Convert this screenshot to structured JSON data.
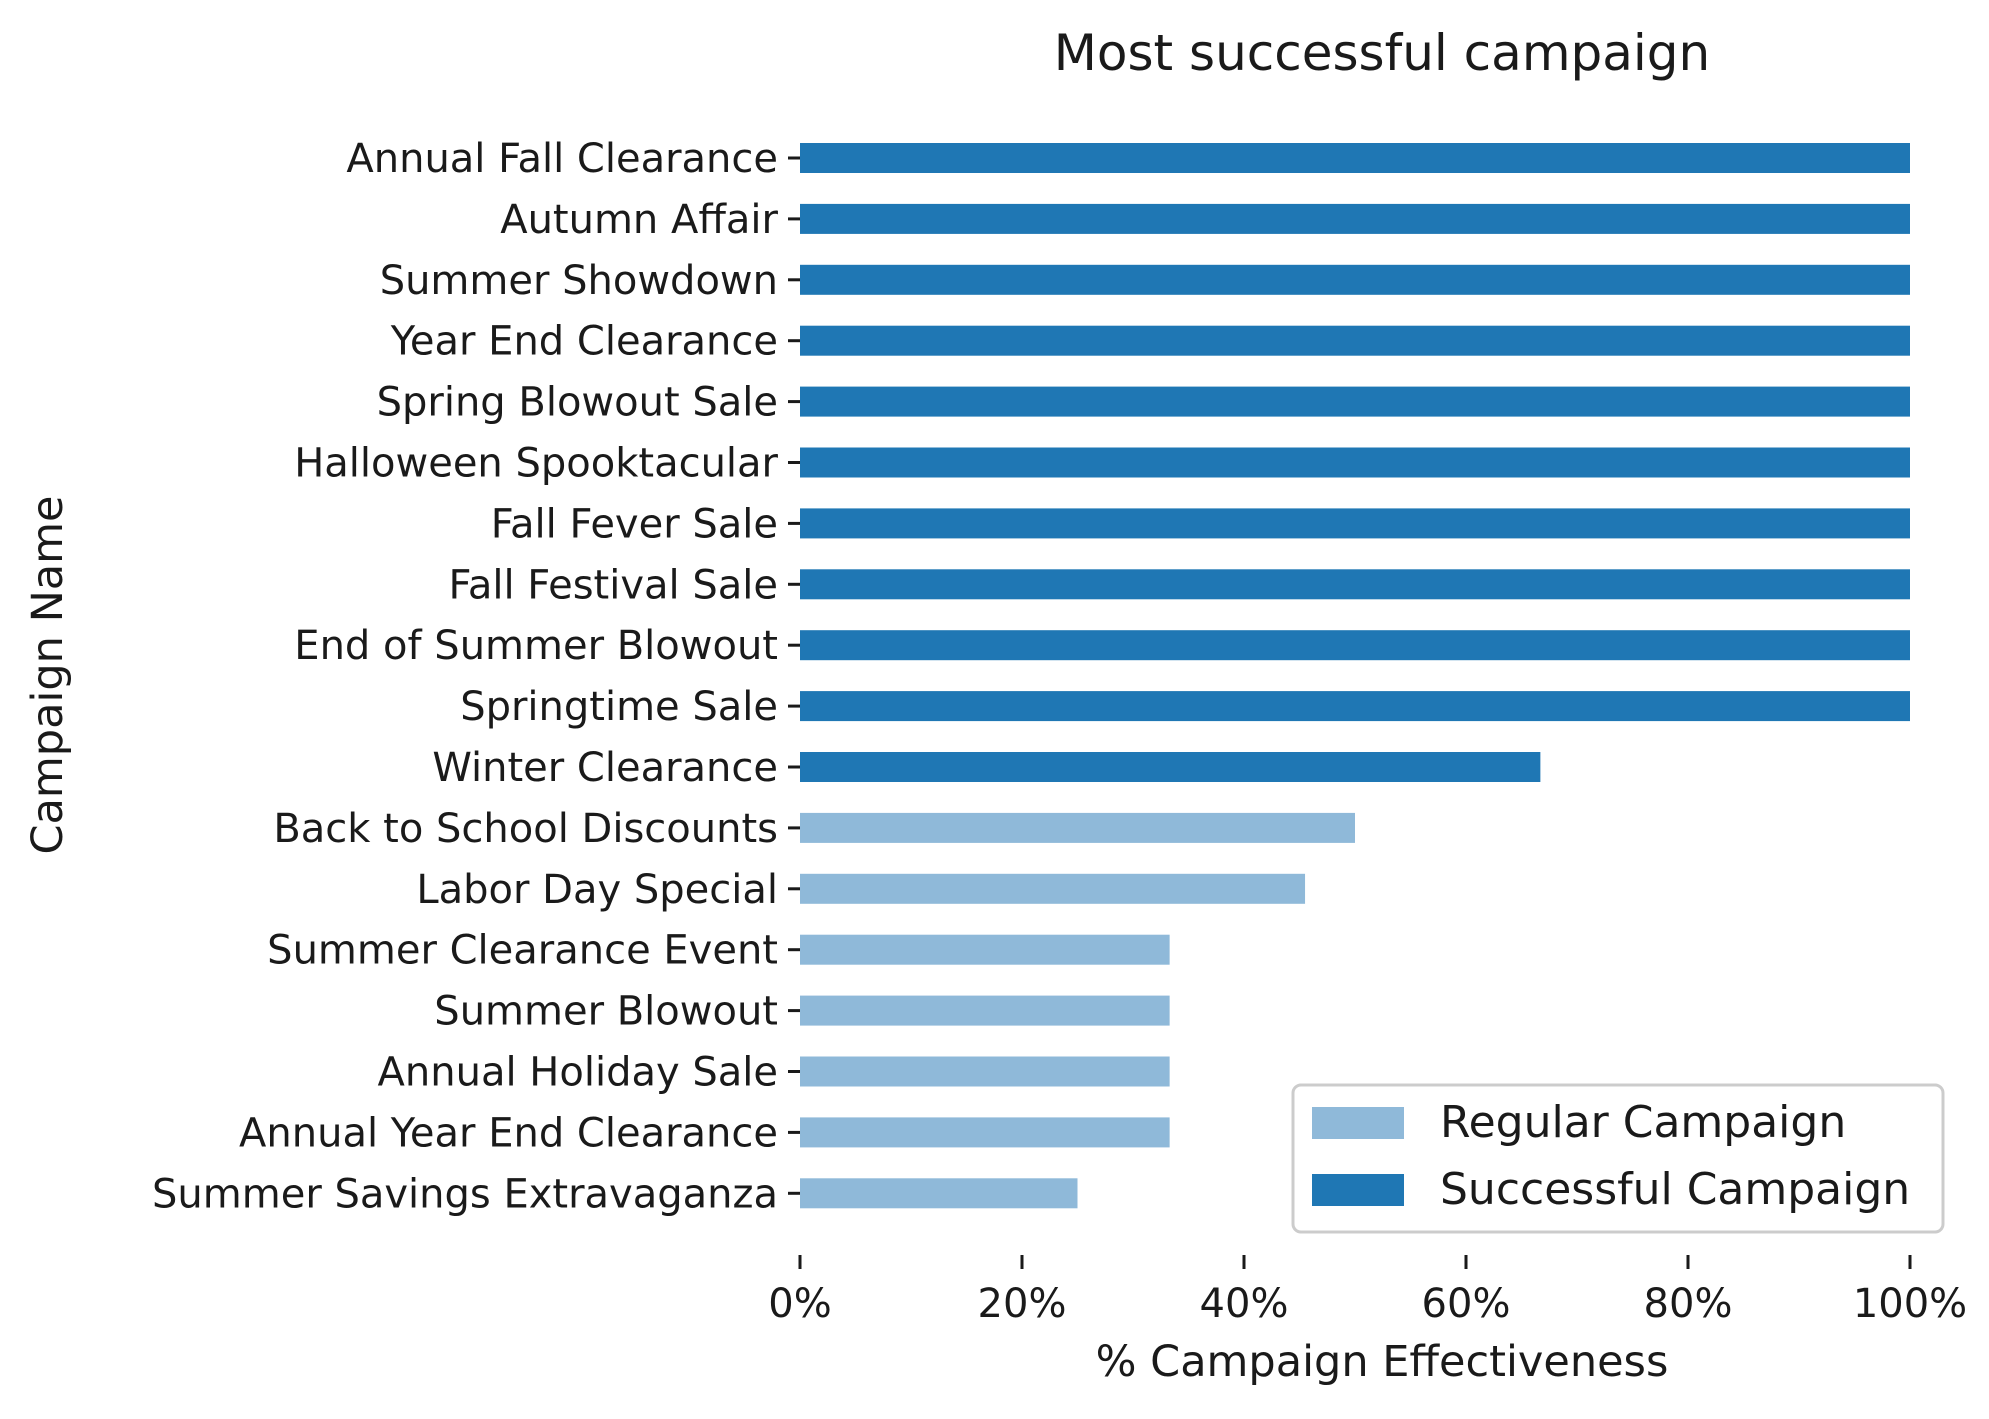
{
  "chart_data": {
    "type": "bar",
    "orientation": "horizontal",
    "title": "Most successful campaign",
    "xlabel": "% Campaign Effectiveness",
    "ylabel": "Campaign Name",
    "xlim": [
      0,
      100
    ],
    "x_ticks": [
      0,
      20,
      40,
      60,
      80,
      100
    ],
    "x_tick_labels": [
      "0%",
      "20%",
      "40%",
      "60%",
      "80%",
      "100%"
    ],
    "grid": false,
    "legend_position": "bottom-right",
    "colors": {
      "regular": "#8fb9d9",
      "successful": "#1f77b4"
    },
    "categories": [
      "Annual Fall Clearance",
      "Autumn Affair",
      "Summer Showdown",
      "Year End Clearance",
      "Spring Blowout Sale",
      "Halloween Spooktacular",
      "Fall Fever Sale",
      "Fall Festival Sale",
      "End of Summer Blowout",
      "Springtime Sale",
      "Winter Clearance",
      "Back to School Discounts",
      "Labor Day Special",
      "Summer Clearance Event",
      "Summer Blowout",
      "Annual Holiday Sale",
      "Annual Year End Clearance",
      "Summer Savings Extravaganza"
    ],
    "values": [
      100,
      100,
      100,
      100,
      100,
      100,
      100,
      100,
      100,
      100,
      66.7,
      50,
      45.5,
      33.3,
      33.3,
      33.3,
      33.3,
      25
    ],
    "series_membership": [
      "successful",
      "successful",
      "successful",
      "successful",
      "successful",
      "successful",
      "successful",
      "successful",
      "successful",
      "successful",
      "successful",
      "regular",
      "regular",
      "regular",
      "regular",
      "regular",
      "regular",
      "regular"
    ],
    "series": [
      {
        "name": "Regular Campaign",
        "key": "regular"
      },
      {
        "name": "Successful Campaign",
        "key": "successful"
      }
    ]
  }
}
